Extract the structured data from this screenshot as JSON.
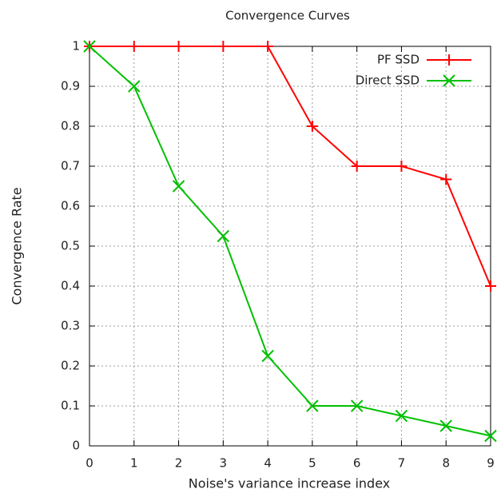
{
  "chart_data": {
    "type": "line",
    "title": "Convergence Curves",
    "x_label": "Noise's variance increase index",
    "y_label": "Convergence Rate",
    "x": [
      0,
      1,
      2,
      3,
      4,
      5,
      6,
      7,
      8,
      9
    ],
    "series": [
      {
        "name": "PF SSD",
        "color": "#ff0000",
        "marker": "plus",
        "values": [
          1,
          1,
          1,
          1,
          1,
          0.8,
          0.7,
          0.7,
          0.667,
          0.4
        ]
      },
      {
        "name": "Direct SSD",
        "color": "#00c000",
        "marker": "x",
        "values": [
          1,
          0.9,
          0.65,
          0.525,
          0.225,
          0.1,
          0.1,
          0.075,
          0.05,
          0.025
        ]
      }
    ],
    "xlim": [
      0,
      9
    ],
    "xticks": [
      0,
      1,
      2,
      3,
      4,
      5,
      6,
      7,
      8,
      9
    ],
    "ylim": [
      0,
      1
    ],
    "yticks": [
      0,
      0.1,
      0.2,
      0.3,
      0.4,
      0.5,
      0.6,
      0.7,
      0.8,
      0.9,
      1
    ],
    "grid": true,
    "legend": "top-right"
  }
}
